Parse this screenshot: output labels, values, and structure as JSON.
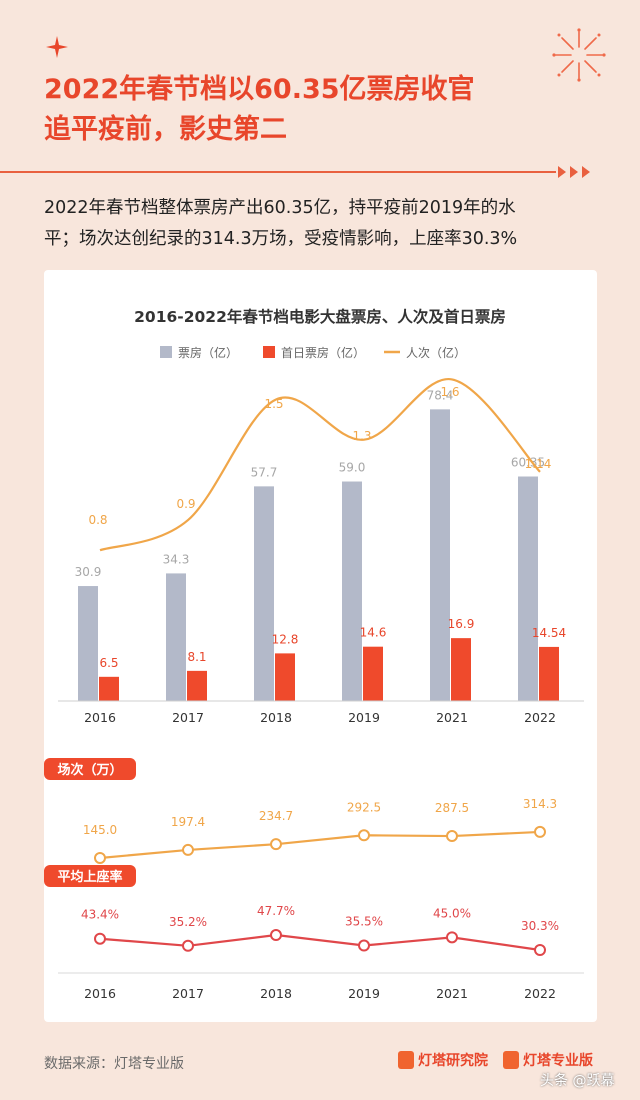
{
  "header": {
    "title_line1": "2022年春节档以60.35亿票房收官",
    "title_line2": "追平疫前，影史第二",
    "subtitle_line1": "2022年春节档整体票房产出60.35亿，持平疫前2019年的水",
    "subtitle_line2": "平；场次达创纪录的314.3万场，受疫情影响，上座率30.3%"
  },
  "colors": {
    "accent": "#e8462b",
    "box_office": "#b3b9c9",
    "first_day": "#ef4a2c",
    "admissions": "#f0a649",
    "screenings_line": "#f0a649",
    "occupancy_line": "#e0474a",
    "background": "#f8e6dc"
  },
  "chart_data": [
    {
      "type": "bar",
      "title": "2016-2022年春节档电影大盘票房、人次及首日票房",
      "categories": [
        "2016",
        "2017",
        "2018",
        "2019",
        "2021",
        "2022"
      ],
      "legend_position": "top",
      "series": [
        {
          "name": "票房（亿）",
          "type": "bar",
          "values": [
            30.9,
            34.3,
            57.7,
            59.0,
            78.4,
            60.35
          ],
          "labels": [
            "30.9",
            "34.3",
            "57.7",
            "59.0",
            "78.4",
            "60.35"
          ]
        },
        {
          "name": "首日票房（亿）",
          "type": "bar",
          "values": [
            6.5,
            8.1,
            12.8,
            14.6,
            16.9,
            14.54
          ],
          "labels": [
            "6.5",
            "8.1",
            "12.8",
            "14.6",
            "16.9",
            "14.54"
          ]
        },
        {
          "name": "人次（亿）",
          "type": "line",
          "values": [
            0.8,
            0.9,
            1.5,
            1.3,
            1.6,
            1.14
          ],
          "labels": [
            "0.8",
            "0.9",
            "1.5",
            "1.3",
            "1.6",
            "1.14"
          ]
        }
      ],
      "ylim": [
        0,
        95
      ],
      "ylim_line": [
        0,
        2.0
      ],
      "grid": false
    },
    {
      "type": "line",
      "title": "场次（万）",
      "categories": [
        "2016",
        "2017",
        "2018",
        "2019",
        "2021",
        "2022"
      ],
      "values": [
        145.0,
        197.4,
        234.7,
        292.5,
        287.5,
        314.3
      ],
      "labels": [
        "145.0",
        "197.4",
        "234.7",
        "292.5",
        "287.5",
        "314.3"
      ],
      "ylim": [
        60,
        700
      ]
    },
    {
      "type": "line",
      "title": "平均上座率",
      "categories": [
        "2016",
        "2017",
        "2018",
        "2019",
        "2021",
        "2022"
      ],
      "values": [
        43.4,
        35.2,
        47.7,
        35.5,
        45.0,
        30.3
      ],
      "labels": [
        "43.4%",
        "35.2%",
        "47.7%",
        "35.5%",
        "45.0%",
        "30.3%"
      ],
      "ylim": [
        -55,
        135
      ]
    }
  ],
  "footer": {
    "source": "数据来源：灯塔专业版",
    "brand1": "灯塔研究院",
    "brand2": "灯塔专业版",
    "watermark": "头条 @跃幕"
  }
}
